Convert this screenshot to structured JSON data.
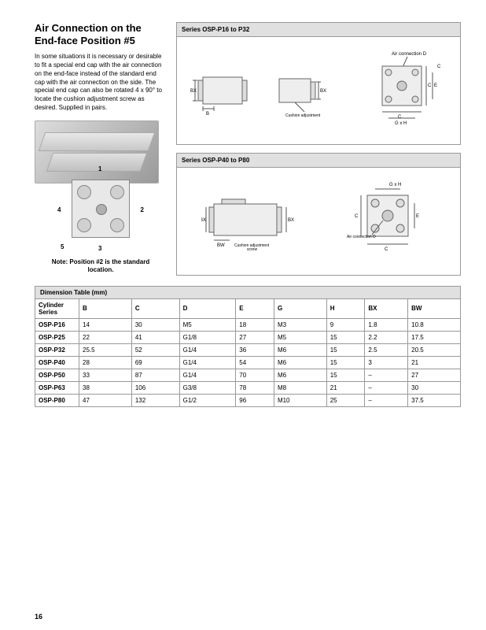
{
  "title": "Air Connection on the End-face Position #5",
  "body": "In some situations it is necessary or desirable to fit a special end cap with the air connection on the end-face instead of the standard end cap with the air connection on the side. The special end cap can also be rotated 4 x 90° to locate the cushion adjustment screw as desired. Supplied in pairs.",
  "panel1_title": "Series OSP-P16 to P32",
  "panel2_title": "Series OSP-P40 to P80",
  "air_conn_label": "Air connection D",
  "cushion_label": "Cushion adjustment screw",
  "pos_numbers": {
    "n1": "1",
    "n2": "2",
    "n3": "3",
    "n4": "4",
    "n5": "5"
  },
  "note": "Note: Position #2 is the standard location.",
  "dim_table_title": "Dimension Table (mm)",
  "columns": [
    "Cylinder Series",
    "B",
    "C",
    "D",
    "E",
    "G",
    "H",
    "BX",
    "BW"
  ],
  "rows": [
    [
      "OSP-P16",
      "14",
      "30",
      "M5",
      "18",
      "M3",
      "9",
      "1.8",
      "10.8"
    ],
    [
      "OSP-P25",
      "22",
      "41",
      "G1/8",
      "27",
      "M5",
      "15",
      "2.2",
      "17.5"
    ],
    [
      "OSP-P32",
      "25.5",
      "52",
      "G1/4",
      "36",
      "M6",
      "15",
      "2.5",
      "20.5"
    ],
    [
      "OSP-P40",
      "28",
      "69",
      "G1/4",
      "54",
      "M6",
      "15",
      "3",
      "21"
    ],
    [
      "OSP-P50",
      "33",
      "87",
      "G1/4",
      "70",
      "M6",
      "15",
      "–",
      "27"
    ],
    [
      "OSP-P63",
      "38",
      "106",
      "G3/8",
      "78",
      "M8",
      "21",
      "–",
      "30"
    ],
    [
      "OSP-P80",
      "47",
      "132",
      "G1/2",
      "96",
      "M10",
      "25",
      "–",
      "37.5"
    ]
  ],
  "dim_labels": {
    "B": "B",
    "BX": "BX",
    "BW": "BW",
    "C": "C",
    "E": "E",
    "GxH": "G x H"
  },
  "page_number": "16"
}
